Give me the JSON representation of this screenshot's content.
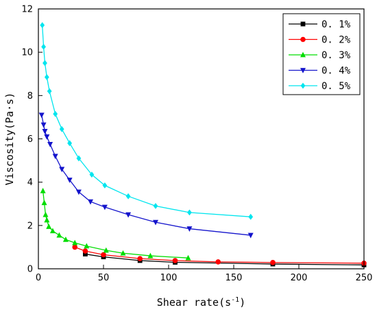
{
  "chart_data": {
    "type": "line",
    "title": "",
    "xlabel": "Shear rate(s",
    "xlabel_sup": "-1",
    "xlabel_close": ")",
    "ylabel": "Viscosity(Pa·s)",
    "xlim": [
      0,
      250
    ],
    "ylim": [
      0,
      12
    ],
    "xticks": [
      "0",
      "50",
      "100",
      "150",
      "200",
      "250"
    ],
    "yticks": [
      "0",
      "2",
      "4",
      "6",
      "8",
      "10",
      "12"
    ],
    "grid": false,
    "legend_position": "top-right",
    "series": [
      {
        "name": "0. 1%",
        "color": "#000000",
        "marker": "square",
        "x": [
          36,
          50,
          78,
          105,
          180,
          250
        ],
        "y": [
          0.68,
          0.55,
          0.38,
          0.3,
          0.22,
          0.18
        ]
      },
      {
        "name": "0. 2%",
        "color": "#ff0000",
        "marker": "circle",
        "x": [
          28,
          36,
          50,
          78,
          105,
          138,
          180,
          250
        ],
        "y": [
          1.0,
          0.82,
          0.65,
          0.47,
          0.38,
          0.32,
          0.29,
          0.26
        ]
      },
      {
        "name": "0. 3%",
        "color": "#00dd00",
        "marker": "triangle-up",
        "x": [
          3.5,
          4.5,
          5.5,
          6.5,
          8,
          11,
          16,
          21,
          28,
          37,
          52,
          65,
          86,
          115
        ],
        "y": [
          3.6,
          3.05,
          2.5,
          2.25,
          1.95,
          1.75,
          1.55,
          1.35,
          1.2,
          1.05,
          0.85,
          0.72,
          0.6,
          0.5
        ]
      },
      {
        "name": "0. 4%",
        "color": "#1414cc",
        "marker": "triangle-down",
        "x": [
          2.5,
          4,
          5,
          6.5,
          9,
          13,
          18,
          24,
          31,
          40,
          51,
          69,
          90,
          116,
          163
        ],
        "y": [
          7.1,
          6.65,
          6.35,
          6.1,
          5.75,
          5.2,
          4.6,
          4.1,
          3.55,
          3.1,
          2.85,
          2.5,
          2.15,
          1.85,
          1.55
        ]
      },
      {
        "name": "0. 5%",
        "color": "#00e5ee",
        "marker": "diamond",
        "x": [
          3,
          4,
          5,
          6.5,
          8.5,
          13,
          18,
          24,
          31,
          41,
          51,
          69,
          90,
          116,
          163
        ],
        "y": [
          11.25,
          10.25,
          9.5,
          8.85,
          8.2,
          7.15,
          6.45,
          5.8,
          5.1,
          4.35,
          3.85,
          3.35,
          2.9,
          2.6,
          2.4
        ]
      }
    ]
  }
}
